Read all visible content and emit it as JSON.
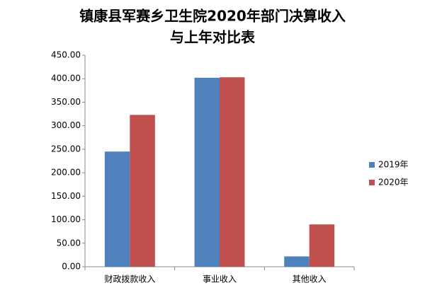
{
  "chart_data": {
    "type": "bar",
    "title": [
      "镇康县军赛乡卫生院2020年部门决算收入",
      "与上年对比表"
    ],
    "categories": [
      "财政拨款收入",
      "事业收入",
      "其他收入"
    ],
    "series": [
      {
        "name": "2019年",
        "color": "#4f81bd",
        "values": [
          245,
          402,
          22
        ]
      },
      {
        "name": "2020年",
        "color": "#c0504d",
        "values": [
          323,
          403,
          90
        ]
      }
    ],
    "ylim": [
      0,
      450
    ],
    "yticks": [
      {
        "value": 0,
        "label": "0.00"
      },
      {
        "value": 50,
        "label": "50.00"
      },
      {
        "value": 100,
        "label": "100.00"
      },
      {
        "value": 150,
        "label": "150.00"
      },
      {
        "value": 200,
        "label": "200.00"
      },
      {
        "value": 250,
        "label": "250.00"
      },
      {
        "value": 300,
        "label": "300.00"
      },
      {
        "value": 350,
        "label": "350.00"
      },
      {
        "value": 400,
        "label": "400.00"
      },
      {
        "value": 450,
        "label": "450.00"
      }
    ],
    "grid": false,
    "legend": "right"
  }
}
